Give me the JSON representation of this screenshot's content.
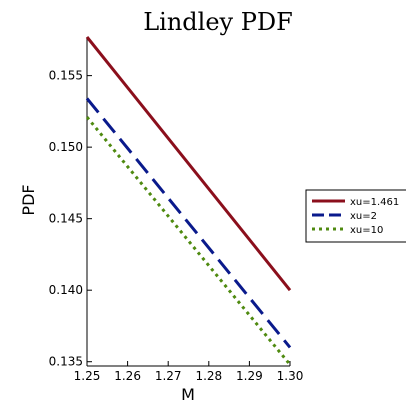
{
  "chart_data": {
    "type": "line",
    "title": "Lindley PDF",
    "xlabel": "M",
    "ylabel": "PDF",
    "xlim": [
      1.25,
      1.3
    ],
    "ylim": [
      0.1347,
      0.1577
    ],
    "xticks": [
      "1.25",
      "1.26",
      "1.27",
      "1.28",
      "1.29",
      "1.30"
    ],
    "yticks": [
      "0.135",
      "0.140",
      "0.145",
      "0.150",
      "0.155"
    ],
    "grid": false,
    "legend_position": "right",
    "series": [
      {
        "name": "xu=1.461",
        "color": "#8b0f1c",
        "dash": "solid",
        "x": [
          1.25,
          1.3
        ],
        "y": [
          0.1577,
          0.14
        ]
      },
      {
        "name": "xu=2",
        "color": "#0a1a8c",
        "dash": "dash",
        "x": [
          1.25,
          1.3
        ],
        "y": [
          0.1534,
          0.136
        ]
      },
      {
        "name": "xu=10",
        "color": "#4f8a10",
        "dash": "dot",
        "x": [
          1.25,
          1.3
        ],
        "y": [
          0.1521,
          0.1348
        ]
      }
    ]
  }
}
